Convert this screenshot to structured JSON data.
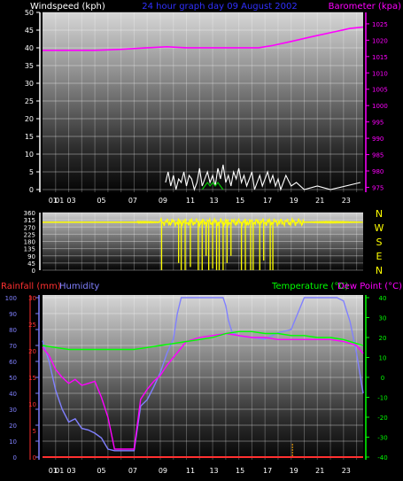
{
  "page": {
    "title": "24 hour graph day 09 August 2002",
    "background_color": "#000000"
  },
  "chart_data": [
    {
      "type": "line",
      "panel": "wind-barometer",
      "labels": {
        "left": "Windspeed (kph)",
        "right": "Barometer (kpa)"
      },
      "colors": {
        "left_label": "#ffffff",
        "right_label": "#ff00ff",
        "title": "#3030ff"
      },
      "x_ticks": [
        "01",
        "01",
        "03",
        "05",
        "07",
        "09",
        "11",
        "13",
        "15",
        "17",
        "19",
        "21",
        "23"
      ],
      "x_tick_hours": [
        0.8,
        1.3,
        2.2,
        4.5,
        6.9,
        9.2,
        11.3,
        13.1,
        15.1,
        17.2,
        19.2,
        21.2,
        23.2
      ],
      "x_range": [
        0,
        24.5
      ],
      "yleft": {
        "ticks": [
          0,
          5,
          10,
          15,
          20,
          25,
          30,
          35,
          40,
          45,
          50
        ],
        "range": [
          0,
          50
        ]
      },
      "yright": {
        "ticks": [
          975,
          980,
          985,
          990,
          995,
          1000,
          1005,
          1010,
          1015,
          1020,
          1025
        ],
        "range": [
          973.5,
          1028.5
        ]
      },
      "series": [
        {
          "name": "Barometer",
          "axis": "right",
          "color": "#ff00ff",
          "x": [
            0,
            2,
            4,
            6,
            8,
            9.5,
            11,
            13,
            15,
            16.5,
            17.5,
            19,
            20.5,
            22,
            23.5,
            24.5
          ],
          "y": [
            1016.9,
            1016.9,
            1016.9,
            1017.2,
            1017.7,
            1018.0,
            1017.7,
            1017.7,
            1017.7,
            1017.7,
            1018.3,
            1019.6,
            1021.0,
            1022.3,
            1023.6,
            1024.0
          ]
        },
        {
          "name": "Windspeed",
          "axis": "left",
          "color": "#ffffff",
          "x": [
            9.4,
            9.6,
            9.8,
            10.0,
            10.2,
            10.4,
            10.6,
            10.8,
            11.0,
            11.2,
            11.4,
            11.6,
            11.8,
            12.0,
            12.2,
            12.4,
            12.6,
            12.8,
            13.0,
            13.2,
            13.4,
            13.6,
            13.8,
            14.0,
            14.2,
            14.4,
            14.6,
            14.8,
            15.0,
            15.2,
            15.4,
            15.6,
            15.8,
            16.0,
            16.2,
            16.4,
            16.6,
            16.8,
            17.0,
            17.2,
            17.4,
            17.6,
            17.8,
            18.0,
            18.2,
            18.4,
            18.6,
            19.0,
            19.4,
            20.0,
            21.0,
            22.0,
            24.3
          ],
          "y": [
            2,
            5,
            1,
            4,
            0,
            3,
            2,
            5,
            1,
            4,
            3,
            0,
            2,
            6,
            1,
            3,
            5,
            2,
            4,
            1,
            6,
            3,
            7,
            2,
            4,
            1,
            5,
            3,
            6,
            2,
            4,
            1,
            3,
            5,
            0,
            2,
            4,
            1,
            3,
            5,
            2,
            4,
            1,
            3,
            0,
            2,
            4,
            1,
            2,
            0,
            1,
            0,
            2
          ]
        },
        {
          "name": "Gust",
          "axis": "left",
          "color": "#00cc00",
          "x": [
            12.2,
            12.4,
            12.6,
            12.8,
            13.0,
            13.2,
            13.4,
            13.6,
            13.8
          ],
          "y": [
            0,
            1,
            2,
            1,
            2,
            1,
            2,
            1,
            0
          ]
        }
      ]
    },
    {
      "type": "scatter",
      "panel": "wind-direction",
      "color": "#ffff00",
      "y_ticks": [
        0,
        45,
        90,
        135,
        180,
        225,
        270,
        315,
        360
      ],
      "y_range": [
        0,
        360
      ],
      "direction_labels": [
        "N",
        "W",
        "S",
        "E",
        "N"
      ],
      "baseline_degrees": 300,
      "baseline_span_hours": [
        0,
        7.2
      ],
      "gusty_span_hours": [
        7.2,
        24.5
      ],
      "drop_hours": [
        9.1,
        10.4,
        10.6,
        10.9,
        11.3,
        11.9,
        12.2,
        12.5,
        12.7,
        13.0,
        13.3,
        13.5,
        13.8,
        14.1,
        14.4,
        15.2,
        15.5,
        15.9,
        16.1,
        16.6,
        16.9,
        17.4,
        17.6
      ],
      "drop_degrees": [
        0,
        45,
        0,
        0,
        20,
        0,
        0,
        90,
        0,
        10,
        0,
        0,
        0,
        45,
        90,
        0,
        0,
        0,
        0,
        0,
        60,
        0,
        0
      ]
    },
    {
      "type": "line",
      "panel": "rain-humidity-temperature",
      "labels": {
        "rainfall": "Rainfall (mm)",
        "humidity": "Humidity",
        "temperature": "Temperature (°C)",
        "dewpoint": "Dew Point (°C)"
      },
      "colors": {
        "rainfall": "#ff3030",
        "humidity": "#8080ff",
        "temperature": "#00ff00",
        "dewpoint": "#ff00ff"
      },
      "x_ticks": [
        "01",
        "01",
        "03",
        "05",
        "07",
        "09",
        "11",
        "13",
        "15",
        "17",
        "19",
        "21",
        "23"
      ],
      "x_tick_hours": [
        0.8,
        1.3,
        2.2,
        4.5,
        6.9,
        9.2,
        11.3,
        13.1,
        15.1,
        17.2,
        19.2,
        21.2,
        23.2
      ],
      "x_range": [
        0,
        24.5
      ],
      "y_humidity": {
        "ticks": [
          0,
          10,
          20,
          30,
          40,
          50,
          60,
          70,
          80,
          90,
          100
        ],
        "range": [
          0,
          100
        ]
      },
      "y_rainfall": {
        "ticks": [
          0,
          5,
          10,
          15,
          20,
          25,
          30
        ],
        "range": [
          0,
          30
        ]
      },
      "y_temperature": {
        "ticks": [
          -40,
          -30,
          -20,
          -10,
          0,
          10,
          20,
          30,
          40
        ],
        "range": [
          -40,
          40
        ]
      },
      "series": [
        {
          "name": "Humidity",
          "axis": "humidity",
          "color": "#8080ff",
          "x": [
            0,
            0.5,
            1,
            1.5,
            2,
            2.5,
            3,
            3.5,
            4,
            4.5,
            5,
            5.5,
            6,
            6.5,
            7,
            7.5,
            8,
            8.5,
            9,
            9.5,
            10,
            10.3,
            10.6,
            11,
            12,
            13,
            13.8,
            14,
            14.2,
            14.5,
            15,
            16,
            17,
            18,
            19,
            19.5,
            20,
            21,
            22,
            22.5,
            23,
            23.5,
            24,
            24.5
          ],
          "y": [
            73,
            60,
            42,
            30,
            22,
            24,
            18,
            17,
            15,
            12,
            5,
            4,
            4,
            4,
            4,
            32,
            36,
            44,
            53,
            65,
            74,
            90,
            100,
            100,
            100,
            100,
            100,
            95,
            86,
            78,
            76,
            75,
            74,
            78,
            80,
            90,
            100,
            100,
            100,
            100,
            98,
            85,
            65,
            40
          ]
        },
        {
          "name": "Dew Point",
          "axis": "temperature",
          "color": "#ff00ff",
          "x": [
            0,
            0.5,
            1,
            1.5,
            2,
            2.5,
            3,
            3.5,
            4,
            4.5,
            5,
            5.5,
            6,
            6.5,
            7,
            7.5,
            8,
            8.5,
            9,
            9.5,
            10,
            10.5,
            11,
            12,
            13,
            14,
            15,
            16,
            17,
            18,
            19,
            20,
            21,
            22,
            23,
            24,
            24.5
          ],
          "y": [
            15,
            11,
            4,
            0,
            -3,
            -1,
            -4,
            -3,
            -2,
            -10,
            -20,
            -36,
            -36,
            -36,
            -36,
            -11,
            -6,
            -2,
            1,
            6,
            10,
            14,
            18,
            20,
            21,
            22,
            21,
            20,
            20,
            19,
            19,
            19,
            19,
            19,
            18,
            16,
            12
          ]
        },
        {
          "name": "Temperature",
          "axis": "temperature",
          "color": "#00ff00",
          "x": [
            0,
            1,
            2,
            3,
            4,
            5,
            6,
            7,
            8,
            9,
            10,
            11,
            12,
            13,
            14,
            15,
            16,
            17,
            18,
            19,
            20,
            21,
            22,
            23,
            24,
            24.5
          ],
          "y": [
            16,
            15,
            14,
            14,
            14,
            14,
            14,
            14,
            15,
            16,
            17,
            18,
            19,
            20,
            22,
            23,
            23,
            22,
            22,
            21,
            21,
            20,
            20,
            19,
            17,
            16
          ]
        },
        {
          "name": "Rainfall",
          "axis": "rainfall",
          "color": "#ff3030",
          "x": [
            0,
            24.5
          ],
          "y": [
            0,
            0
          ]
        }
      ]
    }
  ]
}
